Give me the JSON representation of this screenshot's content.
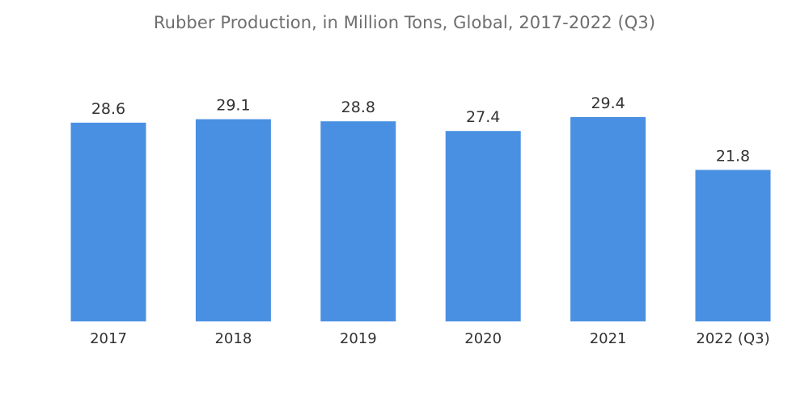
{
  "chart_data": {
    "type": "bar",
    "title": "Rubber Production, in Million Tons, Global, 2017-2022 (Q3)",
    "categories": [
      "2017",
      "2018",
      "2019",
      "2020",
      "2021",
      "2022 (Q3)"
    ],
    "values": [
      28.6,
      29.1,
      28.8,
      27.4,
      29.4,
      21.8
    ],
    "value_labels": [
      "28.6",
      "29.1",
      "28.8",
      "27.4",
      "29.4",
      "21.8"
    ],
    "xlabel": "",
    "ylabel": "",
    "ylim": [
      0,
      29.4
    ],
    "grid": false,
    "legend": "none",
    "bar_color": "#4a90e2"
  }
}
